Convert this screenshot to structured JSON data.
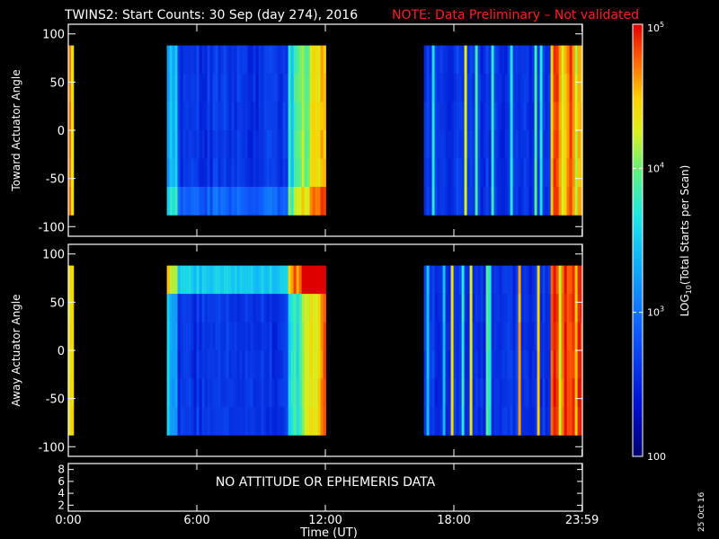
{
  "title": "TWINS2: Start Counts: 30 Sep (day 274), 2016",
  "note": "NOTE: Data Preliminary – Not validated",
  "date_stamp": "25 Oct 16",
  "no_data_message": "NO ATTITUDE OR EPHEMERIS DATA",
  "chart_data": {
    "type": "heatmap",
    "title": "TWINS2: Start Counts: 30 Sep (day 274), 2016",
    "xlabel": "Time (UT)",
    "x_ticks": [
      {
        "hour": 0,
        "label": "0:00"
      },
      {
        "hour": 6,
        "label": "6:00"
      },
      {
        "hour": 12,
        "label": "12:00"
      },
      {
        "hour": 18,
        "label": "18:00"
      },
      {
        "hour": 23.983,
        "label": "23:59"
      }
    ],
    "xlim": [
      0,
      24
    ],
    "panels": [
      {
        "ylabel": "Toward Actuator Angle",
        "ylim": [
          -110,
          110
        ],
        "y_ticks": [
          100,
          50,
          0,
          -50,
          -100
        ],
        "data_angle_range": [
          -88,
          88
        ],
        "data_intervals_hours": [
          [
            0.0,
            0.15
          ],
          [
            4.6,
            11.95
          ],
          [
            16.6,
            23.98
          ]
        ],
        "typical_log10_counts": {
          "background": 2.6,
          "transition": 3.2,
          "edges": 4.5
        }
      },
      {
        "ylabel": "Away Actuator Angle",
        "ylim": [
          -110,
          110
        ],
        "y_ticks": [
          100,
          50,
          0,
          -50,
          -100
        ],
        "data_angle_range": [
          -88,
          88
        ],
        "data_intervals_hours": [
          [
            0.0,
            0.15
          ],
          [
            4.6,
            11.95
          ],
          [
            16.6,
            23.98
          ]
        ],
        "typical_log10_counts": {
          "background": 2.6,
          "transition": 3.2,
          "edges": 4.5
        }
      },
      {
        "ylabel": "",
        "ylim": [
          1,
          9
        ],
        "y_ticks": [
          8,
          6,
          4,
          2
        ]
      }
    ],
    "colorbar": {
      "label_base": "LOG",
      "label_sub": "10",
      "label_rest": "(Total Starts per Scan)",
      "scale": "log",
      "range": [
        100,
        100000
      ],
      "ticks": [
        {
          "value": 100,
          "base": "100",
          "exp": ""
        },
        {
          "value": 1000,
          "base": "10",
          "exp": "3"
        },
        {
          "value": 10000,
          "base": "10",
          "exp": "4"
        },
        {
          "value": 100000,
          "base": "10",
          "exp": "5"
        }
      ]
    }
  }
}
